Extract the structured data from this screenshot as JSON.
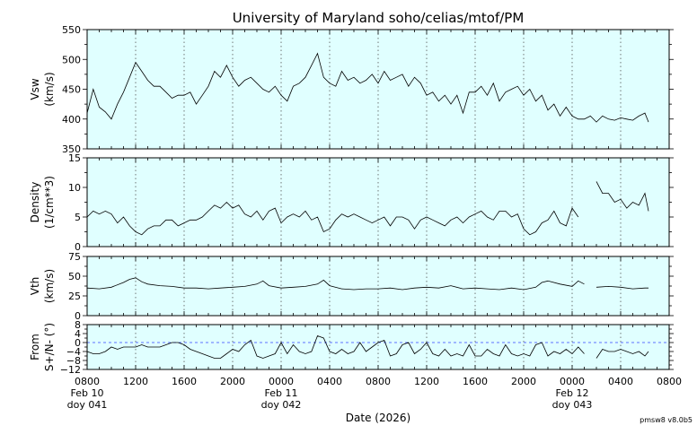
{
  "chart_data": {
    "type": "line",
    "title": "University of Maryland  soho/celias/mtof/PM",
    "xlabel": "Date (2026)",
    "footer": "pmsw8 v8.0b5",
    "x_unit": "hours since 0800 Feb 10",
    "xlim": [
      0,
      48
    ],
    "x_ticks": [
      {
        "h": 0,
        "label": "0800",
        "date": "Feb 10",
        "doy": "doy 041"
      },
      {
        "h": 4,
        "label": "1200"
      },
      {
        "h": 8,
        "label": "1600"
      },
      {
        "h": 12,
        "label": "2000"
      },
      {
        "h": 16,
        "label": "0000",
        "date": "Feb 11",
        "doy": "doy 042"
      },
      {
        "h": 20,
        "label": "0400"
      },
      {
        "h": 24,
        "label": "0800"
      },
      {
        "h": 28,
        "label": "1200"
      },
      {
        "h": 32,
        "label": "1600"
      },
      {
        "h": 36,
        "label": "2000"
      },
      {
        "h": 40,
        "label": "0000",
        "date": "Feb 12",
        "doy": "doy 043"
      },
      {
        "h": 44,
        "label": "0400"
      },
      {
        "h": 48,
        "label": "0800"
      }
    ],
    "grid": "vertical dotted at major ticks",
    "panels": [
      {
        "name": "vsw",
        "ylabel": [
          "Vsw",
          "(km/s)"
        ],
        "ylim": [
          350,
          550
        ],
        "yticks": [
          350,
          400,
          450,
          500,
          550
        ],
        "zero_line": false,
        "x": [
          0,
          0.5,
          1,
          1.5,
          2,
          2.5,
          3,
          3.5,
          4,
          4.5,
          5,
          5.5,
          6,
          6.5,
          7,
          7.5,
          8,
          8.5,
          9,
          9.5,
          10,
          10.5,
          11,
          11.5,
          12,
          12.5,
          13,
          13.5,
          14,
          14.5,
          15,
          15.5,
          16,
          16.5,
          17,
          17.5,
          18,
          18.5,
          19,
          19.5,
          20,
          20.5,
          21,
          21.5,
          22,
          22.5,
          23,
          23.5,
          24,
          24.5,
          25,
          25.5,
          26,
          26.5,
          27,
          27.5,
          28,
          28.5,
          29,
          29.5,
          30,
          30.5,
          31,
          31.5,
          32,
          32.5,
          33,
          33.5,
          34,
          34.5,
          35,
          35.5,
          36,
          36.5,
          37,
          37.5,
          38,
          38.5,
          39,
          39.5,
          40,
          40.5,
          41,
          41.5,
          42,
          42.5,
          43,
          43.5,
          44,
          44.5,
          45,
          45.5,
          46,
          46.3
        ],
        "y": [
          410,
          450,
          420,
          412,
          400,
          425,
          445,
          470,
          495,
          480,
          465,
          455,
          455,
          445,
          435,
          440,
          440,
          445,
          425,
          440,
          455,
          480,
          470,
          490,
          470,
          455,
          465,
          470,
          460,
          450,
          445,
          455,
          440,
          430,
          455,
          460,
          470,
          490,
          510,
          470,
          460,
          455,
          480,
          465,
          470,
          460,
          465,
          475,
          460,
          480,
          465,
          470,
          475,
          455,
          470,
          460,
          440,
          445,
          430,
          440,
          425,
          440,
          410,
          445,
          445,
          455,
          440,
          460,
          430,
          445,
          450,
          455,
          440,
          450,
          430,
          440,
          415,
          425,
          405,
          420,
          405,
          400,
          400,
          405,
          395,
          405,
          400,
          398,
          402,
          400,
          398,
          405,
          410,
          395
        ]
      },
      {
        "name": "density",
        "ylabel": [
          "Density",
          "(1/cm**3)"
        ],
        "ylim": [
          0,
          15
        ],
        "yticks": [
          0,
          5,
          10,
          15
        ],
        "zero_line": false,
        "x": [
          0,
          0.5,
          1,
          1.5,
          2,
          2.5,
          3,
          3.5,
          4,
          4.5,
          5,
          5.5,
          6,
          6.5,
          7,
          7.5,
          8,
          8.5,
          9,
          9.5,
          10,
          10.5,
          11,
          11.5,
          12,
          12.5,
          13,
          13.5,
          14,
          14.5,
          15,
          15.5,
          16,
          16.5,
          17,
          17.5,
          18,
          18.5,
          19,
          19.5,
          20,
          20.5,
          21,
          21.5,
          22,
          22.5,
          23,
          23.5,
          24,
          24.5,
          25,
          25.5,
          26,
          26.5,
          27,
          27.5,
          28,
          28.5,
          29,
          29.5,
          30,
          30.5,
          31,
          31.5,
          32,
          32.5,
          33,
          33.5,
          34,
          34.5,
          35,
          35.5,
          36,
          36.5,
          37,
          37.5,
          38,
          38.5,
          39,
          39.5,
          40,
          40.5,
          41,
          41.5,
          42,
          42.5,
          43,
          43.5,
          44,
          44.5,
          45,
          45.5,
          46,
          46.3
        ],
        "y": [
          5,
          6,
          5.5,
          6,
          5.5,
          4,
          5,
          3.5,
          2.5,
          2,
          3,
          3.5,
          3.5,
          4.5,
          4.5,
          3.5,
          4,
          4.5,
          4.5,
          5,
          6,
          7,
          6.5,
          7.5,
          6.5,
          7,
          5.5,
          5,
          6,
          4.5,
          6,
          6.5,
          4,
          5,
          5.5,
          5,
          6,
          4.5,
          5,
          2.5,
          3,
          4.5,
          5.5,
          5,
          5.5,
          5,
          4.5,
          4,
          4.5,
          5,
          3.5,
          5,
          5,
          4.5,
          3,
          4.5,
          5,
          4.5,
          4,
          3.5,
          4.5,
          5,
          4,
          5,
          5.5,
          6,
          5,
          4.5,
          6,
          6,
          5,
          5.5,
          3,
          2,
          2.5,
          4,
          4.5,
          6,
          4,
          3.5,
          6.5,
          5,
          null,
          null,
          11,
          9,
          9,
          7.5,
          8,
          6.5,
          7.5,
          7,
          9,
          6
        ]
      },
      {
        "name": "vth",
        "ylabel": [
          "Vth",
          "(km/s)"
        ],
        "ylim": [
          0,
          75
        ],
        "yticks": [
          0,
          25,
          50,
          75
        ],
        "zero_line": false,
        "x": [
          0,
          1,
          2,
          3,
          3.5,
          4,
          4.5,
          5,
          6,
          7,
          8,
          9,
          10,
          11,
          12,
          13,
          14,
          14.5,
          15,
          16,
          17,
          18,
          19,
          19.5,
          20,
          21,
          22,
          23,
          24,
          25,
          26,
          27,
          28,
          29,
          30,
          31,
          32,
          33,
          34,
          35,
          36,
          37,
          37.5,
          38,
          39,
          40,
          40.5,
          41,
          41.5,
          42,
          43,
          44,
          45,
          46,
          46.3
        ],
        "y": [
          35,
          34,
          36,
          42,
          46,
          48,
          43,
          40,
          38,
          37,
          35,
          35,
          34,
          35,
          36,
          37,
          40,
          44,
          38,
          35,
          36,
          37,
          40,
          45,
          38,
          34,
          33,
          34,
          34,
          35,
          33,
          35,
          36,
          35,
          38,
          34,
          35,
          34,
          33,
          35,
          33,
          36,
          42,
          44,
          40,
          37,
          44,
          40,
          null,
          36,
          37,
          36,
          34,
          35,
          35
        ]
      },
      {
        "name": "flow-angle",
        "ylabel": [
          "From",
          "S+/N- (°)"
        ],
        "ylim": [
          -12,
          8
        ],
        "yticks": [
          -12,
          -8,
          -4,
          0,
          4,
          8
        ],
        "ytick_labels": [
          "−12",
          "−8",
          "−4",
          "0",
          "4",
          "8"
        ],
        "zero_line": true,
        "x": [
          0,
          0.5,
          1,
          1.5,
          2,
          2.5,
          3,
          3.5,
          4,
          4.5,
          5,
          5.5,
          6,
          6.5,
          7,
          7.5,
          8,
          8.5,
          9,
          9.5,
          10,
          10.5,
          11,
          11.5,
          12,
          12.5,
          13,
          13.5,
          14,
          14.5,
          15,
          15.5,
          16,
          16.5,
          17,
          17.5,
          18,
          18.5,
          19,
          19.5,
          20,
          20.5,
          21,
          21.5,
          22,
          22.5,
          23,
          23.5,
          24,
          24.5,
          25,
          25.5,
          26,
          26.5,
          27,
          27.5,
          28,
          28.5,
          29,
          29.5,
          30,
          30.5,
          31,
          31.5,
          32,
          32.5,
          33,
          33.5,
          34,
          34.5,
          35,
          35.5,
          36,
          36.5,
          37,
          37.5,
          38,
          38.5,
          39,
          39.5,
          40,
          40.5,
          41,
          41.5,
          42,
          42.5,
          43,
          43.5,
          44,
          44.5,
          45,
          45.5,
          46,
          46.3
        ],
        "y": [
          -4,
          -5,
          -5,
          -4,
          -2,
          -3,
          -2,
          -2,
          -2,
          -1,
          -2,
          -2,
          -2,
          -1,
          0,
          0,
          -1,
          -3,
          -4,
          -5,
          -6,
          -7,
          -7,
          -5,
          -3,
          -4,
          -1,
          1,
          -6,
          -7,
          -6,
          -5,
          0,
          -5,
          -1,
          -4,
          -5,
          -4,
          3,
          2,
          -4,
          -5,
          -3,
          -5,
          -4,
          0,
          -4,
          -2,
          0,
          1,
          -6,
          -5,
          -1,
          0,
          -5,
          -3,
          0,
          -5,
          -6,
          -3,
          -6,
          -5,
          -6,
          -1,
          -6,
          -6,
          -3,
          -5,
          -6,
          -1,
          -5,
          -6,
          -5,
          -6,
          -1,
          0,
          -6,
          -4,
          -5,
          -3,
          -5,
          -2,
          -5,
          null,
          -7,
          -3,
          -4,
          -4,
          -3,
          -4,
          -5,
          -4,
          -6,
          -4
        ]
      }
    ]
  }
}
